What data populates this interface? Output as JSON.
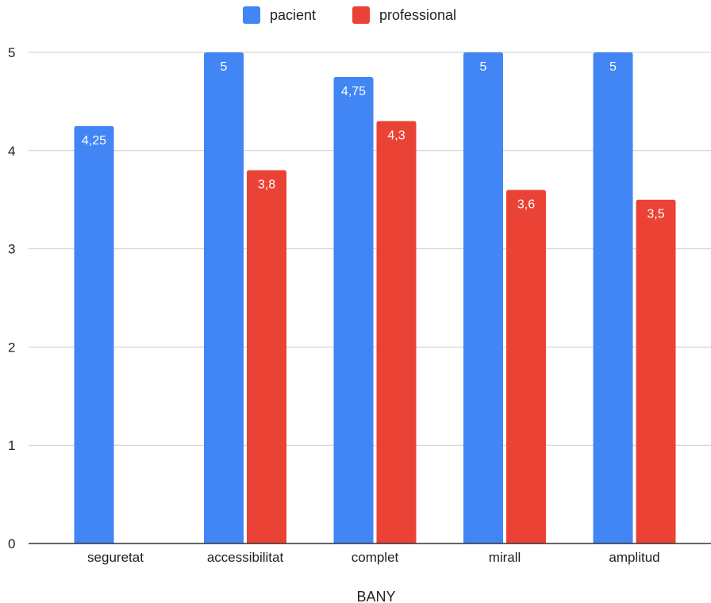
{
  "chart_data": {
    "type": "bar",
    "xlabel": "BANY",
    "ylabel": "",
    "ylim": [
      0,
      5
    ],
    "yticks": [
      "0",
      "1",
      "2",
      "3",
      "4",
      "5"
    ],
    "grid": true,
    "legend_position": "top",
    "categories": [
      "seguretat",
      "accessibilitat",
      "complet",
      "mirall",
      "amplitud"
    ],
    "series": [
      {
        "name": "pacient",
        "color": "#4285F4",
        "values": [
          4.25,
          5,
          4.75,
          5,
          5
        ],
        "labels": [
          "4,25",
          "5",
          "4,75",
          "5",
          "5"
        ]
      },
      {
        "name": "professional",
        "color": "#EA4335",
        "values": [
          null,
          3.8,
          4.3,
          3.6,
          3.5
        ],
        "labels": [
          "",
          "3,8",
          "4,3",
          "3,6",
          "3,5"
        ]
      }
    ]
  }
}
